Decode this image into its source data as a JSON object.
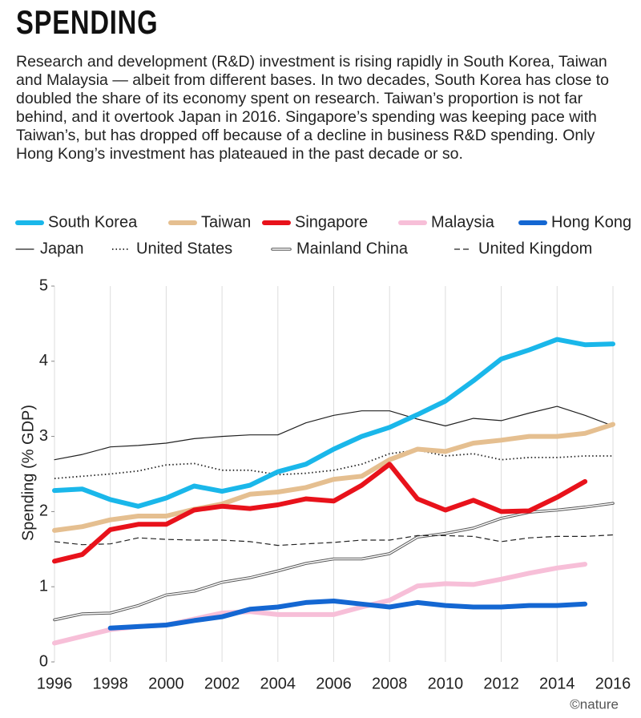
{
  "chart_data": {
    "type": "line",
    "title": "SPENDING",
    "subtitle": "Research and development (R&D) investment is rising rapidly in South Korea, Taiwan and Malaysia — albeit from different bases. In two decades, South Korea has close to doubled the share of its economy spent on research. Taiwan’s proportion is not far behind, and it overtook Japan in 2016. Singapore’s spending was keeping pace with Taiwan’s, but has dropped off because of a decline in business R&D spending. Only Hong Kong’s investment has plateaued in the past decade or so.",
    "y_label": "Spending (% GDP)",
    "credit": "©nature",
    "x": [
      1996,
      1997,
      1998,
      1999,
      2000,
      2001,
      2002,
      2003,
      2004,
      2005,
      2006,
      2007,
      2008,
      2009,
      2010,
      2011,
      2012,
      2013,
      2014,
      2015,
      2016
    ],
    "xlim": [
      1996,
      2016
    ],
    "xticks": [
      1996,
      1998,
      2000,
      2002,
      2004,
      2006,
      2008,
      2010,
      2012,
      2014,
      2016
    ],
    "ylim": [
      0,
      5
    ],
    "yticks": [
      0,
      1,
      2,
      3,
      4,
      5
    ],
    "grid": true,
    "series": [
      {
        "name": "South Korea",
        "color": "#1ab7ea",
        "style": "thick",
        "values": [
          2.28,
          2.3,
          2.16,
          2.07,
          2.18,
          2.34,
          2.27,
          2.35,
          2.53,
          2.63,
          2.83,
          3.0,
          3.12,
          3.29,
          3.47,
          3.74,
          4.03,
          4.15,
          4.29,
          4.22,
          4.23
        ]
      },
      {
        "name": "Taiwan",
        "color": "#e5bf90",
        "style": "thick",
        "values": [
          1.75,
          1.8,
          1.89,
          1.94,
          1.94,
          2.03,
          2.1,
          2.23,
          2.26,
          2.32,
          2.43,
          2.47,
          2.69,
          2.83,
          2.8,
          2.91,
          2.95,
          3.0,
          3.0,
          3.04,
          3.16
        ]
      },
      {
        "name": "Singapore",
        "color": "#e8121b",
        "style": "thick",
        "values": [
          1.34,
          1.43,
          1.76,
          1.83,
          1.83,
          2.02,
          2.07,
          2.04,
          2.09,
          2.17,
          2.14,
          2.35,
          2.63,
          2.17,
          2.02,
          2.15,
          2.0,
          2.01,
          2.19,
          2.4,
          null
        ]
      },
      {
        "name": "Malaysia",
        "color": "#f7bfd8",
        "style": "thick",
        "values": [
          0.25,
          0.34,
          0.43,
          0.47,
          0.49,
          0.57,
          0.65,
          0.67,
          0.63,
          0.63,
          0.63,
          0.73,
          0.82,
          1.01,
          1.04,
          1.03,
          1.1,
          1.18,
          1.25,
          1.3,
          null
        ]
      },
      {
        "name": "Hong Kong",
        "color": "#1467d2",
        "style": "thick",
        "values": [
          null,
          null,
          0.45,
          0.47,
          0.49,
          0.55,
          0.6,
          0.7,
          0.73,
          0.79,
          0.81,
          0.77,
          0.73,
          0.79,
          0.75,
          0.73,
          0.73,
          0.75,
          0.75,
          0.77,
          null
        ]
      },
      {
        "name": "Japan",
        "color": "#222222",
        "style": "thin",
        "values": [
          2.69,
          2.76,
          2.86,
          2.88,
          2.91,
          2.97,
          3.0,
          3.02,
          3.02,
          3.18,
          3.28,
          3.34,
          3.34,
          3.23,
          3.14,
          3.24,
          3.21,
          3.31,
          3.4,
          3.28,
          3.14
        ]
      },
      {
        "name": "United States",
        "color": "#222222",
        "style": "dotted",
        "values": [
          2.44,
          2.47,
          2.5,
          2.54,
          2.62,
          2.64,
          2.55,
          2.55,
          2.49,
          2.51,
          2.55,
          2.63,
          2.77,
          2.82,
          2.74,
          2.77,
          2.69,
          2.72,
          2.72,
          2.74,
          2.74
        ]
      },
      {
        "name": "Mainland China",
        "color": "#555555",
        "style": "double",
        "values": [
          0.56,
          0.64,
          0.65,
          0.75,
          0.89,
          0.94,
          1.06,
          1.12,
          1.21,
          1.31,
          1.37,
          1.37,
          1.44,
          1.66,
          1.71,
          1.78,
          1.91,
          1.99,
          2.02,
          2.06,
          2.11
        ]
      },
      {
        "name": "United Kingdom",
        "color": "#222222",
        "style": "dashed",
        "values": [
          1.6,
          1.56,
          1.57,
          1.65,
          1.63,
          1.62,
          1.62,
          1.6,
          1.55,
          1.57,
          1.59,
          1.62,
          1.62,
          1.68,
          1.68,
          1.67,
          1.6,
          1.65,
          1.67,
          1.67,
          1.69
        ]
      }
    ]
  }
}
